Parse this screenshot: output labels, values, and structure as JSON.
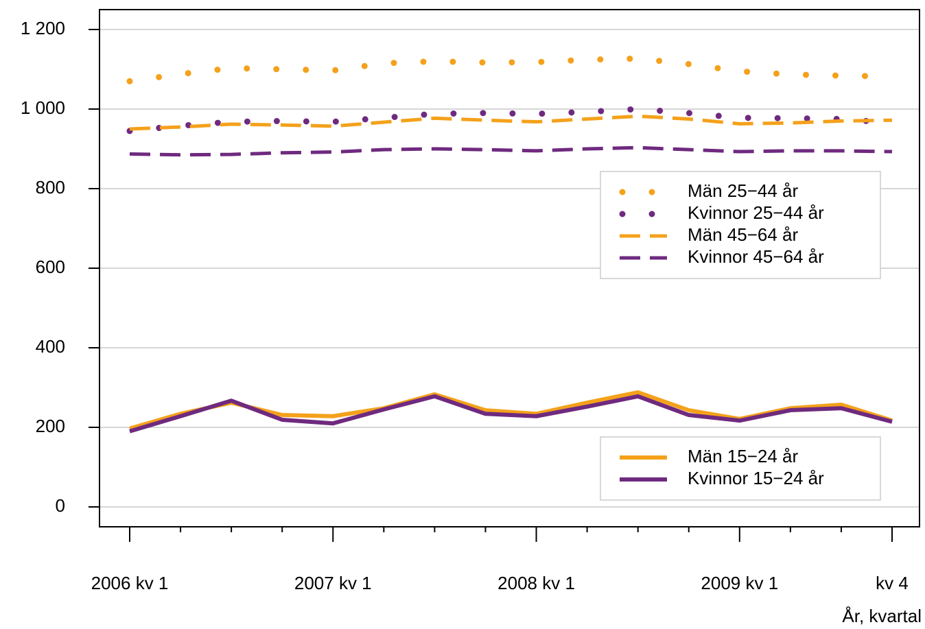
{
  "chart_data": {
    "type": "line",
    "x_label": "År, kvartal",
    "categories": [
      "2006 kv 1",
      null,
      null,
      null,
      "2007 kv 1",
      null,
      null,
      null,
      "2008 kv 1",
      null,
      null,
      null,
      "2009 kv 1",
      null,
      null,
      "kv 4"
    ],
    "ylim": [
      -50,
      1250
    ],
    "yticks": [
      0,
      200,
      400,
      600,
      800,
      {
        "value": 1000,
        "label": "1 000"
      },
      {
        "value": 1200,
        "label": "1 200"
      }
    ],
    "grid": true,
    "series": [
      {
        "name": "Män 25−44 år",
        "color": "#f4a11b",
        "style": "dotted",
        "values": [
          1070,
          1088,
          1103,
          1100,
          1097,
          1115,
          1120,
          1117,
          1118,
          1124,
          1127,
          1113,
          1095,
          1087,
          1084,
          1082
        ]
      },
      {
        "name": "Kvinnor 25−44 år",
        "color": "#6f2a7f",
        "style": "dotted",
        "values": [
          945,
          958,
          968,
          970,
          968,
          978,
          988,
          990,
          988,
          993,
          1000,
          990,
          978,
          977,
          975,
          965
        ]
      },
      {
        "name": "Män 45−64 år",
        "color": "#f4a11b",
        "style": "dashed",
        "values": [
          950,
          955,
          962,
          960,
          957,
          967,
          977,
          972,
          968,
          975,
          982,
          975,
          963,
          965,
          970,
          972
        ]
      },
      {
        "name": "Kvinnor 45−64 år",
        "color": "#6f2a7f",
        "style": "dashed",
        "values": [
          887,
          885,
          886,
          890,
          892,
          898,
          900,
          898,
          895,
          900,
          903,
          898,
          893,
          895,
          895,
          893
        ]
      },
      {
        "name": "Män 15−24 år",
        "color": "#f4a11b",
        "style": "solid",
        "values": [
          197,
          234,
          262,
          231,
          228,
          248,
          283,
          243,
          234,
          262,
          288,
          243,
          221,
          248,
          257,
          217
        ]
      },
      {
        "name": "Kvinnor 15−24 år",
        "color": "#6f2a7f",
        "style": "solid",
        "values": [
          190,
          228,
          267,
          219,
          210,
          245,
          278,
          234,
          228,
          252,
          278,
          231,
          217,
          243,
          248,
          214
        ]
      }
    ]
  }
}
